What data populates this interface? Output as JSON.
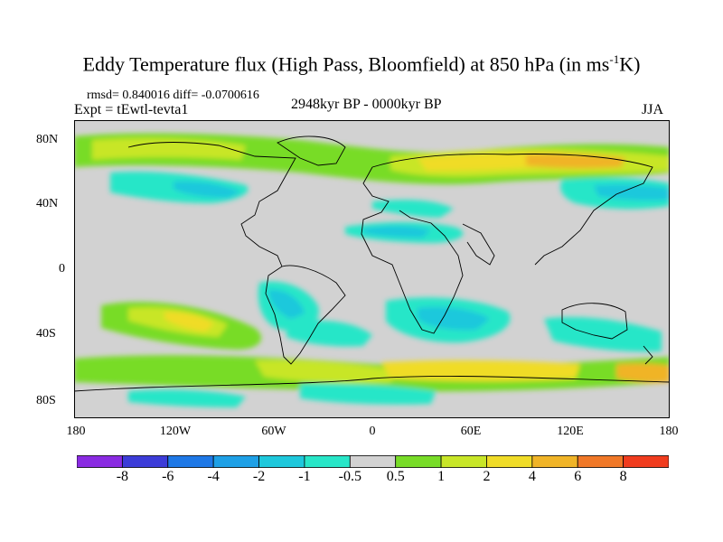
{
  "title": {
    "main": "Eddy Temperature flux (High Pass, Bloomfield) at 850 hPa (in ms",
    "sup": "-1",
    "tail": "K)"
  },
  "stats": "rmsd= 0.840016 diff= -0.0700616",
  "expt": "Expt = tEwtl-tevta1",
  "period": "2948kyr BP - 0000kyr BP",
  "season": "JJA",
  "lat_labels": [
    "80N",
    "40N",
    "0",
    "40S",
    "80S"
  ],
  "lon_labels": [
    "180",
    "120W",
    "60W",
    "0",
    "60E",
    "120E",
    "180"
  ],
  "colorbar": {
    "labels": [
      "-8",
      "-6",
      "-4",
      "-2",
      "-1",
      "-0.5",
      "0.5",
      "1",
      "2",
      "4",
      "6",
      "8"
    ],
    "colors": [
      "#8a2be2",
      "#3c3cd8",
      "#1e78e6",
      "#1ea0e6",
      "#1ec8dc",
      "#28e6c8",
      "#d2d2d2",
      "#78dc28",
      "#c8e628",
      "#f0dc28",
      "#f0b428",
      "#f07828",
      "#f03c1e"
    ]
  }
}
